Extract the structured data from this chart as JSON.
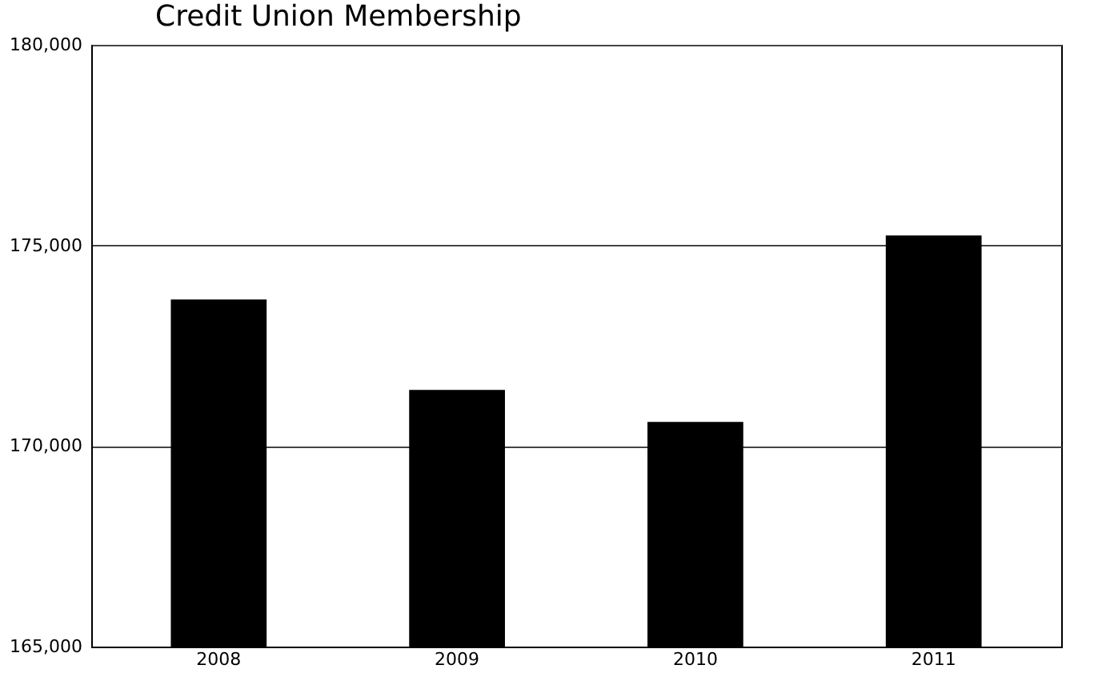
{
  "chart_data": {
    "type": "bar",
    "title": "Credit Union Membership",
    "categories": [
      "2008",
      "2009",
      "2010",
      "2011"
    ],
    "values": [
      173650,
      171400,
      170600,
      175250
    ],
    "color": "#000000",
    "ylim": [
      165000,
      180000
    ],
    "yticks": [
      {
        "value": 165000,
        "label": "165,000"
      },
      {
        "value": 170000,
        "label": "170,000"
      },
      {
        "value": 175000,
        "label": "175,000"
      },
      {
        "value": 180000,
        "label": "180,000"
      }
    ],
    "grid": "y"
  }
}
